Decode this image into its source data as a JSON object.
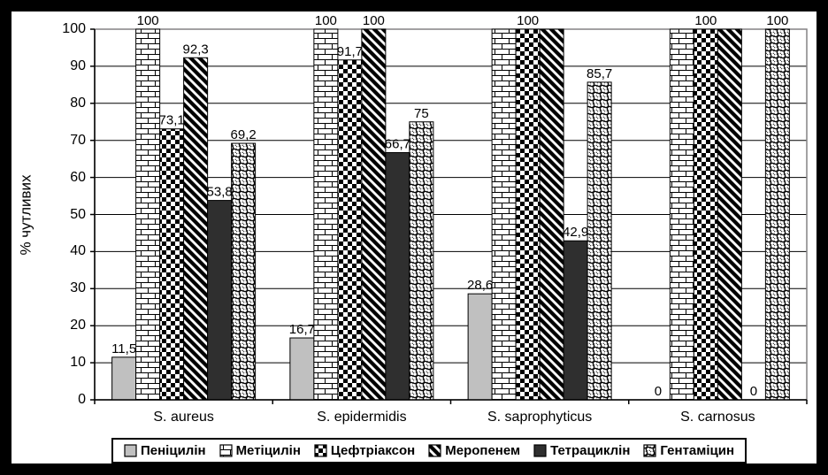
{
  "colors": {
    "background": "#ffffff",
    "frame_black": "#000000",
    "light_gray": "#c0c0c0",
    "dark_gray": "#2f2f2f",
    "pattern_black": "#000000",
    "plot_border": "#848284",
    "grid": "#000000",
    "axis": "#000000"
  },
  "chart_data": {
    "type": "bar",
    "title": "",
    "xlabel": "",
    "ylabel": "% чутливих",
    "ylim": [
      0,
      100
    ],
    "ytick_step": 10,
    "yticks": [
      0,
      10,
      20,
      30,
      40,
      50,
      60,
      70,
      80,
      90,
      100
    ],
    "grid": true,
    "legend_position": "bottom",
    "categories": [
      "S. aureus",
      "S. epidermidis",
      "S. saprophyticus",
      "S. carnosus"
    ],
    "series": [
      {
        "name": "Пеніцилін",
        "pattern": "solid-light",
        "values": [
          11.5,
          16.7,
          28.6,
          0
        ],
        "labels": [
          "11,5",
          "16,7",
          "28,6",
          "0"
        ]
      },
      {
        "name": "Метіцилін",
        "pattern": "brick",
        "values": [
          100,
          100,
          100,
          100
        ],
        "labels": [
          "100",
          "100",
          "",
          ""
        ]
      },
      {
        "name": "Цефтріаксон",
        "pattern": "checker",
        "values": [
          73.1,
          91.7,
          100,
          100
        ],
        "labels": [
          "73,1",
          "91,7",
          "100",
          "100"
        ]
      },
      {
        "name": "Меропенем",
        "pattern": "diagonal",
        "values": [
          92.3,
          100,
          100,
          100
        ],
        "labels": [
          "92,3",
          "100",
          "",
          ""
        ]
      },
      {
        "name": "Тетрациклін",
        "pattern": "solid-dark",
        "values": [
          53.8,
          66.7,
          42.9,
          0
        ],
        "labels": [
          "53,8",
          "66,7",
          "42,9",
          "0"
        ]
      },
      {
        "name": "Гентаміцин",
        "pattern": "circles",
        "values": [
          69.2,
          75,
          85.7,
          100
        ],
        "labels": [
          "69,2",
          "75",
          "85,7",
          "100"
        ]
      }
    ]
  }
}
